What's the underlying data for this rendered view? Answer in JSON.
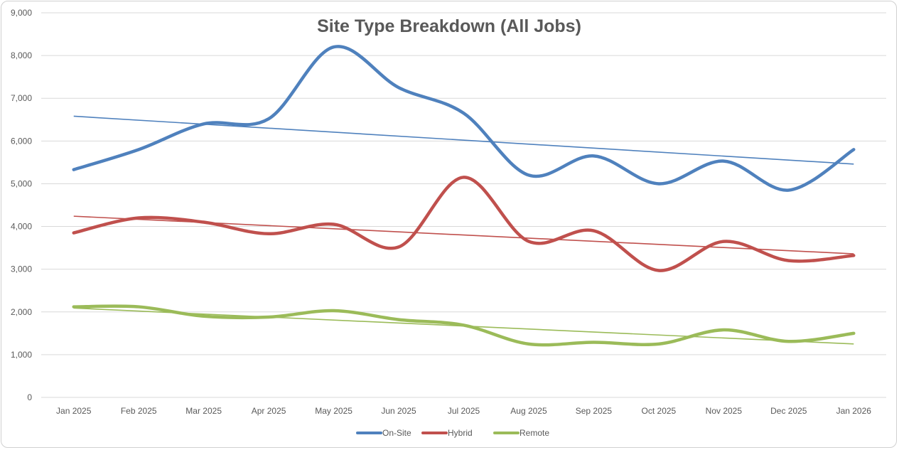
{
  "chart_data": {
    "type": "line",
    "title": "Site Type Breakdown  (All Jobs)",
    "xlabel": "",
    "ylabel": "",
    "categories": [
      "Jan 2025",
      "Feb 2025",
      "Mar 2025",
      "Apr 2025",
      "May 2025",
      "Jun 2025",
      "Jul 2025",
      "Aug 2025",
      "Sep 2025",
      "Oct 2025",
      "Nov 2025",
      "Dec 2025",
      "Jan 2026"
    ],
    "ylim": [
      0,
      9000
    ],
    "yticks": [
      0,
      1000,
      2000,
      3000,
      4000,
      5000,
      6000,
      7000,
      8000,
      9000
    ],
    "ytick_labels": [
      "0",
      "1,000",
      "2,000",
      "3,000",
      "4,000",
      "5,000",
      "6,000",
      "7,000",
      "8,000",
      "9,000"
    ],
    "grid": true,
    "legend_position": "bottom",
    "series": [
      {
        "name": "On-Site",
        "color": "#4f81bd",
        "values": [
          5330,
          5800,
          6400,
          6520,
          8200,
          7250,
          6650,
          5200,
          5650,
          5000,
          5530,
          4850,
          5800
        ],
        "trend": [
          6580,
          5460
        ]
      },
      {
        "name": "Hybrid",
        "color": "#c0504d",
        "values": [
          3850,
          4200,
          4100,
          3830,
          4050,
          3520,
          5150,
          3650,
          3900,
          2970,
          3650,
          3200,
          3320
        ],
        "trend": [
          4240,
          3360
        ]
      },
      {
        "name": "Remote",
        "color": "#9bbb59",
        "values": [
          2120,
          2120,
          1900,
          1880,
          2030,
          1820,
          1690,
          1250,
          1290,
          1250,
          1580,
          1310,
          1500
        ],
        "trend": [
          2090,
          1250
        ]
      }
    ]
  }
}
